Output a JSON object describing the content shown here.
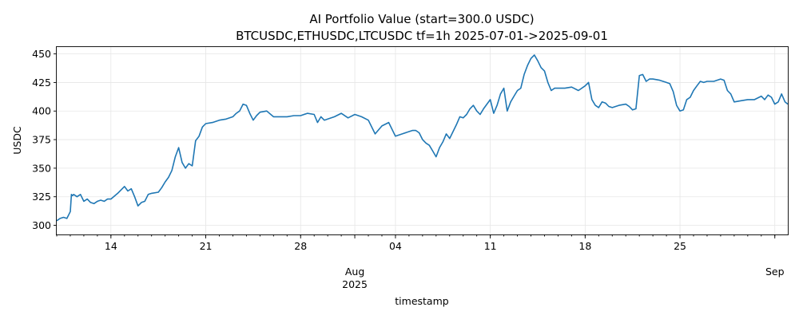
{
  "chart_data": {
    "type": "line",
    "title": "AI Portfolio Value (start=300.0 USDC)",
    "subtitle": "BTCUSDC,ETHUSDC,LTCUSDC tf=1h 2025-07-01->2025-09-01",
    "xlabel": "timestamp",
    "ylabel": "USDC",
    "xlim": [
      "2025-07-10",
      "2025-09-01T23:00"
    ],
    "ylim": [
      292,
      456
    ],
    "grid": true,
    "series_color": "#1f77b4",
    "y_ticks": [
      {
        "value": 300,
        "label": "300"
      },
      {
        "value": 325,
        "label": "325"
      },
      {
        "value": 350,
        "label": "350"
      },
      {
        "value": 375,
        "label": "375"
      },
      {
        "value": 400,
        "label": "400"
      },
      {
        "value": 425,
        "label": "425"
      },
      {
        "value": 450,
        "label": "450"
      }
    ],
    "x_major_ticks": [
      {
        "date": "2025-07-14",
        "label": "14",
        "sublabel": "",
        "sublabel2": ""
      },
      {
        "date": "2025-07-21",
        "label": "21",
        "sublabel": "",
        "sublabel2": ""
      },
      {
        "date": "2025-07-28",
        "label": "28",
        "sublabel": "",
        "sublabel2": ""
      },
      {
        "date": "2025-08-01",
        "label": "",
        "sublabel": "Aug",
        "sublabel2": "2025"
      },
      {
        "date": "2025-08-04",
        "label": "04",
        "sublabel": "",
        "sublabel2": ""
      },
      {
        "date": "2025-08-11",
        "label": "11",
        "sublabel": "",
        "sublabel2": ""
      },
      {
        "date": "2025-08-18",
        "label": "18",
        "sublabel": "",
        "sublabel2": ""
      },
      {
        "date": "2025-08-25",
        "label": "25",
        "sublabel": "",
        "sublabel2": ""
      },
      {
        "date": "2025-09-01",
        "label": "",
        "sublabel": "Sep",
        "sublabel2": ""
      }
    ],
    "series": [
      {
        "x": [
          "2025-07-10T00:00",
          "2025-07-10T06:00",
          "2025-07-10T12:00",
          "2025-07-10T18:00",
          "2025-07-11T00:00",
          "2025-07-11T02:00",
          "2025-07-11T04:00",
          "2025-07-11T06:00",
          "2025-07-11T12:00",
          "2025-07-11T18:00",
          "2025-07-12T00:00",
          "2025-07-12T06:00",
          "2025-07-12T12:00",
          "2025-07-12T18:00",
          "2025-07-13T00:00",
          "2025-07-13T06:00",
          "2025-07-13T12:00",
          "2025-07-13T18:00",
          "2025-07-14T00:00",
          "2025-07-14T12:00",
          "2025-07-15T00:00",
          "2025-07-15T06:00",
          "2025-07-15T12:00",
          "2025-07-15T18:00",
          "2025-07-16T00:00",
          "2025-07-16T06:00",
          "2025-07-16T12:00",
          "2025-07-16T18:00",
          "2025-07-17T00:00",
          "2025-07-17T12:00",
          "2025-07-17T18:00",
          "2025-07-18T00:00",
          "2025-07-18T06:00",
          "2025-07-18T12:00",
          "2025-07-18T18:00",
          "2025-07-19T00:00",
          "2025-07-19T06:00",
          "2025-07-19T12:00",
          "2025-07-19T18:00",
          "2025-07-20T00:00",
          "2025-07-20T06:00",
          "2025-07-20T12:00",
          "2025-07-20T18:00",
          "2025-07-21T00:00",
          "2025-07-21T12:00",
          "2025-07-22T00:00",
          "2025-07-22T12:00",
          "2025-07-23T00:00",
          "2025-07-23T06:00",
          "2025-07-23T12:00",
          "2025-07-23T18:00",
          "2025-07-24T00:00",
          "2025-07-24T06:00",
          "2025-07-24T12:00",
          "2025-07-24T18:00",
          "2025-07-25T00:00",
          "2025-07-25T12:00",
          "2025-07-26T00:00",
          "2025-07-26T12:00",
          "2025-07-27T00:00",
          "2025-07-27T12:00",
          "2025-07-28T00:00",
          "2025-07-28T12:00",
          "2025-07-29T00:00",
          "2025-07-29T06:00",
          "2025-07-29T12:00",
          "2025-07-29T18:00",
          "2025-07-30T00:00",
          "2025-07-30T12:00",
          "2025-07-31T00:00",
          "2025-07-31T12:00",
          "2025-08-01T00:00",
          "2025-08-01T12:00",
          "2025-08-02T00:00",
          "2025-08-02T12:00",
          "2025-08-03T00:00",
          "2025-08-03T12:00",
          "2025-08-04T00:00",
          "2025-08-04T12:00",
          "2025-08-05T00:00",
          "2025-08-05T06:00",
          "2025-08-05T12:00",
          "2025-08-05T18:00",
          "2025-08-06T00:00",
          "2025-08-06T06:00",
          "2025-08-06T12:00",
          "2025-08-06T18:00",
          "2025-08-07T00:00",
          "2025-08-07T06:00",
          "2025-08-07T12:00",
          "2025-08-07T18:00",
          "2025-08-08T00:00",
          "2025-08-08T06:00",
          "2025-08-08T12:00",
          "2025-08-08T18:00",
          "2025-08-09T00:00",
          "2025-08-09T06:00",
          "2025-08-09T12:00",
          "2025-08-09T18:00",
          "2025-08-10T00:00",
          "2025-08-10T06:00",
          "2025-08-10T12:00",
          "2025-08-10T18:00",
          "2025-08-11T00:00",
          "2025-08-11T06:00",
          "2025-08-11T12:00",
          "2025-08-11T18:00",
          "2025-08-12T00:00",
          "2025-08-12T06:00",
          "2025-08-12T12:00",
          "2025-08-12T18:00",
          "2025-08-13T00:00",
          "2025-08-13T06:00",
          "2025-08-13T12:00",
          "2025-08-13T18:00",
          "2025-08-14T00:00",
          "2025-08-14T06:00",
          "2025-08-14T12:00",
          "2025-08-14T18:00",
          "2025-08-15T00:00",
          "2025-08-15T06:00",
          "2025-08-15T12:00",
          "2025-08-15T18:00",
          "2025-08-16T00:00",
          "2025-08-16T12:00",
          "2025-08-17T00:00",
          "2025-08-17T12:00",
          "2025-08-18T00:00",
          "2025-08-18T06:00",
          "2025-08-18T12:00",
          "2025-08-18T18:00",
          "2025-08-19T00:00",
          "2025-08-19T06:00",
          "2025-08-19T12:00",
          "2025-08-19T18:00",
          "2025-08-20T00:00",
          "2025-08-20T12:00",
          "2025-08-21T00:00",
          "2025-08-21T06:00",
          "2025-08-21T12:00",
          "2025-08-21T18:00",
          "2025-08-22T00:00",
          "2025-08-22T06:00",
          "2025-08-22T12:00",
          "2025-08-22T18:00",
          "2025-08-23T00:00",
          "2025-08-23T12:00",
          "2025-08-24T00:00",
          "2025-08-24T06:00",
          "2025-08-24T12:00",
          "2025-08-24T18:00",
          "2025-08-25T00:00",
          "2025-08-25T06:00",
          "2025-08-25T12:00",
          "2025-08-25T18:00",
          "2025-08-26T00:00",
          "2025-08-26T06:00",
          "2025-08-26T12:00",
          "2025-08-26T18:00",
          "2025-08-27T00:00",
          "2025-08-27T12:00",
          "2025-08-28T00:00",
          "2025-08-28T06:00",
          "2025-08-28T12:00",
          "2025-08-28T18:00",
          "2025-08-29T00:00",
          "2025-08-29T12:00",
          "2025-08-30T00:00",
          "2025-08-30T12:00",
          "2025-08-31T00:00",
          "2025-08-31T06:00",
          "2025-08-31T12:00",
          "2025-08-31T18:00",
          "2025-09-01T00:00",
          "2025-09-01T06:00",
          "2025-09-01T12:00",
          "2025-09-01T18:00",
          "2025-09-01T23:00"
        ],
        "y": [
          304,
          306,
          307,
          306,
          312,
          327,
          326,
          327,
          325,
          327,
          321,
          323,
          320,
          319,
          321,
          322,
          321,
          323,
          323,
          328,
          334,
          330,
          332,
          325,
          317,
          320,
          321,
          327,
          328,
          329,
          333,
          338,
          342,
          348,
          360,
          368,
          355,
          350,
          354,
          352,
          374,
          378,
          386,
          389,
          390,
          392,
          393,
          395,
          398,
          400,
          406,
          405,
          398,
          392,
          396,
          399,
          400,
          395,
          395,
          395,
          396,
          396,
          398,
          397,
          390,
          395,
          392,
          393,
          395,
          398,
          394,
          397,
          395,
          392,
          380,
          387,
          390,
          378,
          380,
          382,
          383,
          383,
          381,
          375,
          372,
          370,
          365,
          360,
          368,
          373,
          380,
          376,
          382,
          388,
          395,
          394,
          397,
          402,
          405,
          400,
          397,
          402,
          406,
          410,
          398,
          405,
          415,
          420,
          400,
          408,
          413,
          418,
          420,
          432,
          440,
          446,
          449,
          444,
          438,
          435,
          425,
          418,
          420,
          420,
          420,
          421,
          418,
          422,
          425,
          410,
          405,
          403,
          408,
          407,
          404,
          403,
          405,
          406,
          404,
          401,
          402,
          431,
          432,
          426,
          428,
          428,
          427,
          425,
          424,
          417,
          405,
          400,
          401,
          410,
          412,
          418,
          422,
          426,
          425,
          426,
          426,
          428,
          427,
          418,
          415,
          408,
          409,
          410,
          410,
          413,
          410,
          414,
          412,
          406,
          408,
          415,
          408,
          406
        ]
      }
    ]
  }
}
